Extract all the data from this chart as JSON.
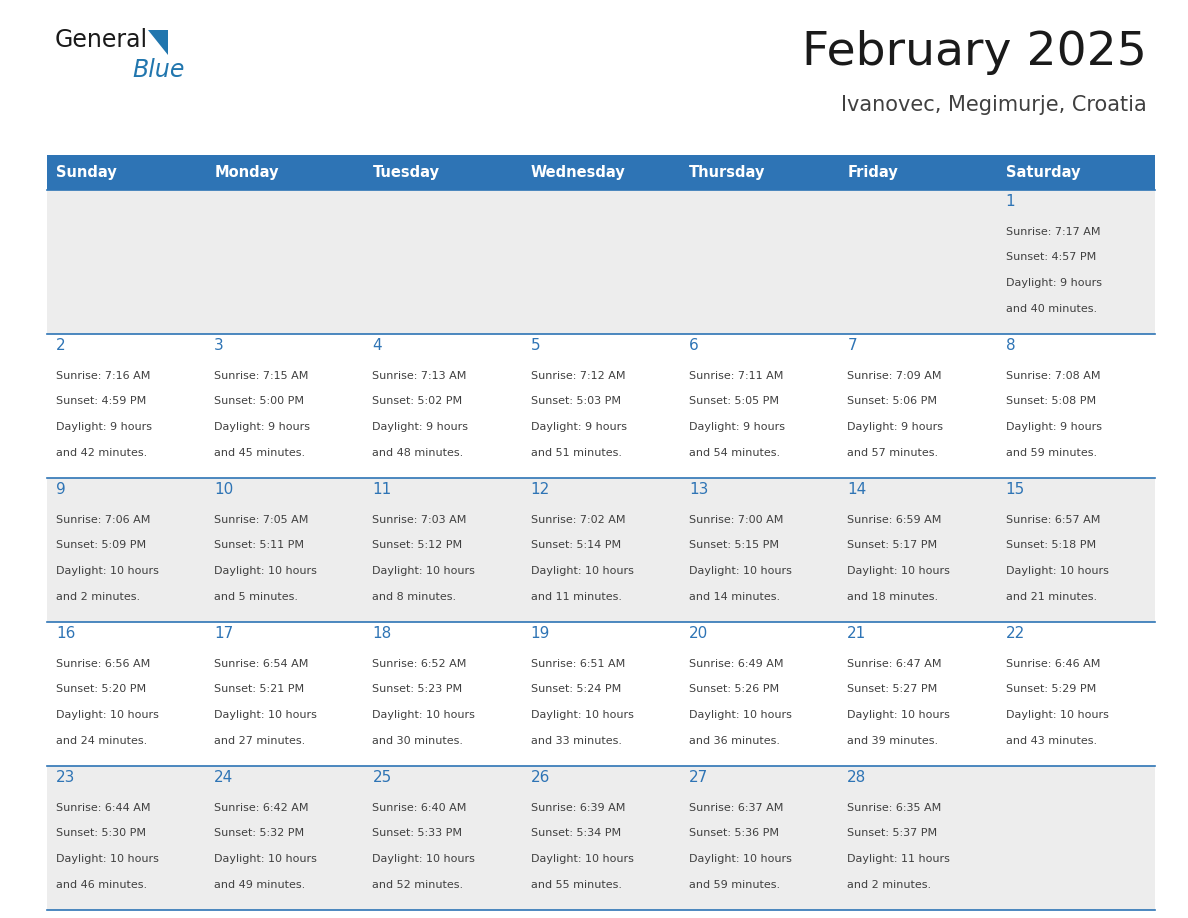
{
  "title": "February 2025",
  "subtitle": "Ivanovec, Megimurje, Croatia",
  "days_of_week": [
    "Sunday",
    "Monday",
    "Tuesday",
    "Wednesday",
    "Thursday",
    "Friday",
    "Saturday"
  ],
  "header_bg": "#2E74B5",
  "header_text_color": "#FFFFFF",
  "row_bg_light": "#EDEDED",
  "row_bg_white": "#FFFFFF",
  "cell_border_color": "#2E74B5",
  "day_number_color": "#2E74B5",
  "info_text_color": "#404040",
  "title_color": "#1a1a1a",
  "subtitle_color": "#404040",
  "logo_general_color": "#1a1a1a",
  "logo_blue_color": "#2176AE",
  "calendar_data": [
    [
      null,
      null,
      null,
      null,
      null,
      null,
      {
        "day": 1,
        "sunrise": "7:17 AM",
        "sunset": "4:57 PM",
        "daylight": "9 hours and 40 minutes."
      }
    ],
    [
      {
        "day": 2,
        "sunrise": "7:16 AM",
        "sunset": "4:59 PM",
        "daylight": "9 hours and 42 minutes."
      },
      {
        "day": 3,
        "sunrise": "7:15 AM",
        "sunset": "5:00 PM",
        "daylight": "9 hours and 45 minutes."
      },
      {
        "day": 4,
        "sunrise": "7:13 AM",
        "sunset": "5:02 PM",
        "daylight": "9 hours and 48 minutes."
      },
      {
        "day": 5,
        "sunrise": "7:12 AM",
        "sunset": "5:03 PM",
        "daylight": "9 hours and 51 minutes."
      },
      {
        "day": 6,
        "sunrise": "7:11 AM",
        "sunset": "5:05 PM",
        "daylight": "9 hours and 54 minutes."
      },
      {
        "day": 7,
        "sunrise": "7:09 AM",
        "sunset": "5:06 PM",
        "daylight": "9 hours and 57 minutes."
      },
      {
        "day": 8,
        "sunrise": "7:08 AM",
        "sunset": "5:08 PM",
        "daylight": "9 hours and 59 minutes."
      }
    ],
    [
      {
        "day": 9,
        "sunrise": "7:06 AM",
        "sunset": "5:09 PM",
        "daylight": "10 hours and 2 minutes."
      },
      {
        "day": 10,
        "sunrise": "7:05 AM",
        "sunset": "5:11 PM",
        "daylight": "10 hours and 5 minutes."
      },
      {
        "day": 11,
        "sunrise": "7:03 AM",
        "sunset": "5:12 PM",
        "daylight": "10 hours and 8 minutes."
      },
      {
        "day": 12,
        "sunrise": "7:02 AM",
        "sunset": "5:14 PM",
        "daylight": "10 hours and 11 minutes."
      },
      {
        "day": 13,
        "sunrise": "7:00 AM",
        "sunset": "5:15 PM",
        "daylight": "10 hours and 14 minutes."
      },
      {
        "day": 14,
        "sunrise": "6:59 AM",
        "sunset": "5:17 PM",
        "daylight": "10 hours and 18 minutes."
      },
      {
        "day": 15,
        "sunrise": "6:57 AM",
        "sunset": "5:18 PM",
        "daylight": "10 hours and 21 minutes."
      }
    ],
    [
      {
        "day": 16,
        "sunrise": "6:56 AM",
        "sunset": "5:20 PM",
        "daylight": "10 hours and 24 minutes."
      },
      {
        "day": 17,
        "sunrise": "6:54 AM",
        "sunset": "5:21 PM",
        "daylight": "10 hours and 27 minutes."
      },
      {
        "day": 18,
        "sunrise": "6:52 AM",
        "sunset": "5:23 PM",
        "daylight": "10 hours and 30 minutes."
      },
      {
        "day": 19,
        "sunrise": "6:51 AM",
        "sunset": "5:24 PM",
        "daylight": "10 hours and 33 minutes."
      },
      {
        "day": 20,
        "sunrise": "6:49 AM",
        "sunset": "5:26 PM",
        "daylight": "10 hours and 36 minutes."
      },
      {
        "day": 21,
        "sunrise": "6:47 AM",
        "sunset": "5:27 PM",
        "daylight": "10 hours and 39 minutes."
      },
      {
        "day": 22,
        "sunrise": "6:46 AM",
        "sunset": "5:29 PM",
        "daylight": "10 hours and 43 minutes."
      }
    ],
    [
      {
        "day": 23,
        "sunrise": "6:44 AM",
        "sunset": "5:30 PM",
        "daylight": "10 hours and 46 minutes."
      },
      {
        "day": 24,
        "sunrise": "6:42 AM",
        "sunset": "5:32 PM",
        "daylight": "10 hours and 49 minutes."
      },
      {
        "day": 25,
        "sunrise": "6:40 AM",
        "sunset": "5:33 PM",
        "daylight": "10 hours and 52 minutes."
      },
      {
        "day": 26,
        "sunrise": "6:39 AM",
        "sunset": "5:34 PM",
        "daylight": "10 hours and 55 minutes."
      },
      {
        "day": 27,
        "sunrise": "6:37 AM",
        "sunset": "5:36 PM",
        "daylight": "10 hours and 59 minutes."
      },
      {
        "day": 28,
        "sunrise": "6:35 AM",
        "sunset": "5:37 PM",
        "daylight": "11 hours and 2 minutes."
      },
      null
    ]
  ]
}
